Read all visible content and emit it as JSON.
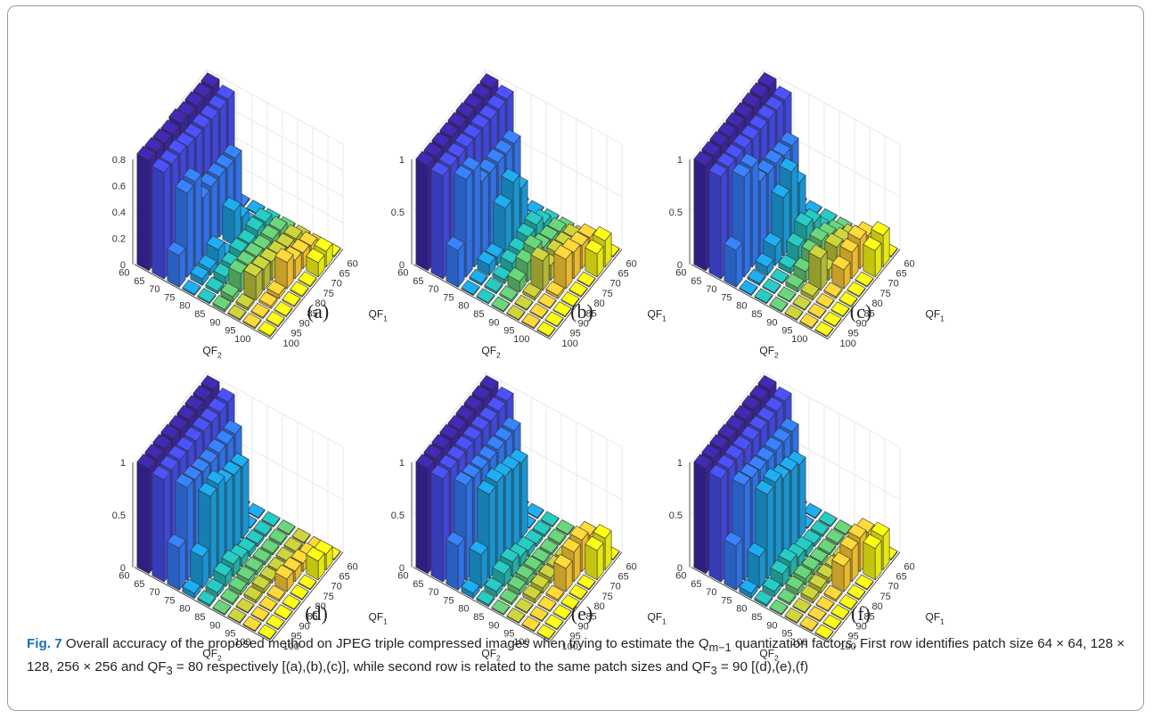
{
  "figure": {
    "caption_label": "Fig. 7",
    "caption_text": " Overall accuracy of the proposed method on JPEG triple compressed images when trying to estimate the Q",
    "caption_sub": "m−1",
    "caption_text2": " quantization factors. First row identifies patch size 64 × 64, 128 × 128, 256 × 256 and QF",
    "caption_sub2": "3",
    "caption_text3": " = 80 respectively [(a),(b),(c)], while second row is related to the same patch sizes and QF",
    "caption_sub3": "3",
    "caption_text4": " = 90 [(d),(e),(f)"
  },
  "chart_data": [
    {
      "type": "bar3d",
      "panel_label": "(a)",
      "zticks": [
        "0",
        "0.2",
        "0.4",
        "0.6",
        "0.8"
      ],
      "zlim": [
        0,
        0.8
      ],
      "xlabel": "QF",
      "xlabel_sub": "1",
      "ylabel": "QF",
      "ylabel_sub": "2",
      "qf1": [
        60,
        65,
        70,
        75,
        80,
        85,
        90,
        95,
        100
      ],
      "qf2": [
        60,
        65,
        70,
        75,
        80,
        85,
        90,
        95,
        100
      ],
      "values": [
        [
          0.79,
          0.79,
          0.8,
          0.8,
          0.82,
          0.81,
          0.82,
          0.83,
          0.84
        ],
        [
          0.76,
          0.76,
          0.76,
          0.77,
          0.77,
          0.78,
          0.8,
          0.8,
          0.81
        ],
        [
          0.01,
          0.45,
          0.45,
          0.46,
          0.46,
          0.45,
          0.65,
          0.64,
          0.24
        ],
        [
          0.01,
          0.01,
          0.14,
          0.26,
          0.01,
          0.12,
          0.05,
          0.05,
          0.01
        ],
        [
          0.01,
          0.09,
          0.1,
          0.08,
          0.09,
          0.06,
          0.05,
          0.02,
          0.01
        ],
        [
          0.01,
          0.09,
          0.1,
          0.1,
          0.12,
          0.13,
          0.14,
          0.04,
          0.02
        ],
        [
          0.01,
          0.09,
          0.1,
          0.12,
          0.14,
          0.16,
          0.18,
          0.02,
          0.01
        ],
        [
          0.01,
          0.1,
          0.12,
          0.14,
          0.2,
          0.03,
          0.02,
          0.01,
          0.01
        ],
        [
          0.01,
          0.12,
          0.11,
          0.01,
          0.01,
          0.01,
          0.01,
          0.01,
          0.01
        ]
      ]
    },
    {
      "type": "bar3d",
      "panel_label": "(b)",
      "zticks": [
        "0",
        "0.5",
        "1"
      ],
      "zlim": [
        0,
        1
      ],
      "xlabel": "QF",
      "xlabel_sub": "1",
      "ylabel": "QF",
      "ylabel_sub": "2",
      "qf1": [
        60,
        65,
        70,
        75,
        80,
        85,
        90,
        95,
        100
      ],
      "qf2": [
        60,
        65,
        70,
        75,
        80,
        85,
        90,
        95,
        100
      ],
      "values": [
        [
          0.98,
          0.98,
          0.98,
          0.99,
          0.99,
          0.99,
          0.99,
          0.99,
          1.0
        ],
        [
          0.95,
          0.95,
          0.95,
          0.96,
          0.96,
          0.97,
          0.97,
          0.98,
          0.98
        ],
        [
          0.01,
          0.7,
          0.7,
          0.71,
          0.71,
          0.72,
          0.92,
          0.93,
          0.35
        ],
        [
          0.01,
          0.01,
          0.45,
          0.6,
          0.45,
          0.08,
          0.1,
          0.02,
          0.01
        ],
        [
          0.01,
          0.1,
          0.18,
          0.16,
          0.12,
          0.1,
          0.04,
          0.02,
          0.01
        ],
        [
          0.01,
          0.1,
          0.12,
          0.14,
          0.22,
          0.18,
          0.1,
          0.02,
          0.01
        ],
        [
          0.01,
          0.12,
          0.14,
          0.16,
          0.14,
          0.28,
          0.03,
          0.01,
          0.01
        ],
        [
          0.01,
          0.2,
          0.22,
          0.25,
          0.28,
          0.03,
          0.01,
          0.01,
          0.01
        ],
        [
          0.01,
          0.25,
          0.22,
          0.01,
          0.01,
          0.01,
          0.01,
          0.01,
          0.01
        ]
      ]
    },
    {
      "type": "bar3d",
      "panel_label": "(c)",
      "zticks": [
        "0",
        "0.5",
        "1"
      ],
      "zlim": [
        0,
        1
      ],
      "xlabel": "QF",
      "xlabel_sub": "1",
      "ylabel": "QF",
      "ylabel_sub": "2",
      "qf1": [
        60,
        65,
        70,
        75,
        80,
        85,
        90,
        95,
        100
      ],
      "qf2": [
        60,
        65,
        70,
        75,
        80,
        85,
        90,
        95,
        100
      ],
      "values": [
        [
          0.99,
          0.99,
          0.99,
          0.99,
          0.99,
          0.99,
          1.0,
          1.0,
          1.0
        ],
        [
          0.94,
          0.94,
          0.95,
          0.95,
          0.95,
          0.96,
          0.96,
          0.97,
          0.97
        ],
        [
          0.01,
          0.68,
          0.68,
          0.7,
          0.7,
          0.72,
          0.95,
          0.95,
          0.35
        ],
        [
          0.01,
          0.01,
          0.5,
          0.7,
          0.55,
          0.18,
          0.08,
          0.02,
          0.01
        ],
        [
          0.01,
          0.05,
          0.2,
          0.26,
          0.16,
          0.05,
          0.01,
          0.01,
          0.01
        ],
        [
          0.01,
          0.08,
          0.15,
          0.2,
          0.18,
          0.1,
          0.04,
          0.01,
          0.01
        ],
        [
          0.01,
          0.12,
          0.18,
          0.22,
          0.1,
          0.3,
          0.04,
          0.01,
          0.01
        ],
        [
          0.01,
          0.22,
          0.28,
          0.25,
          0.18,
          0.02,
          0.01,
          0.01,
          0.01
        ],
        [
          0.01,
          0.3,
          0.25,
          0.01,
          0.01,
          0.01,
          0.01,
          0.01,
          0.01
        ]
      ]
    },
    {
      "type": "bar3d",
      "panel_label": "(d)",
      "zticks": [
        "0",
        "0.5",
        "1"
      ],
      "zlim": [
        0,
        1
      ],
      "xlabel": "QF",
      "xlabel_sub": "1",
      "ylabel": "QF",
      "ylabel_sub": "2",
      "qf1": [
        60,
        65,
        70,
        75,
        80,
        85,
        90,
        95,
        100
      ],
      "qf2": [
        60,
        65,
        70,
        75,
        80,
        85,
        90,
        95,
        100
      ],
      "values": [
        [
          0.99,
          0.99,
          0.99,
          0.99,
          0.99,
          1.0,
          1.0,
          1.0,
          1.0
        ],
        [
          0.95,
          0.95,
          0.95,
          0.96,
          0.96,
          0.96,
          0.97,
          0.97,
          0.97
        ],
        [
          0.01,
          0.82,
          0.82,
          0.83,
          0.83,
          0.84,
          0.86,
          0.88,
          0.4
        ],
        [
          0.01,
          0.01,
          0.68,
          0.7,
          0.72,
          0.8,
          0.78,
          0.3,
          0.05
        ],
        [
          0.01,
          0.02,
          0.03,
          0.05,
          0.08,
          0.12,
          0.1,
          0.04,
          0.02
        ],
        [
          0.01,
          0.02,
          0.02,
          0.03,
          0.04,
          0.05,
          0.04,
          0.02,
          0.01
        ],
        [
          0.01,
          0.02,
          0.02,
          0.02,
          0.03,
          0.04,
          0.03,
          0.01,
          0.01
        ],
        [
          0.01,
          0.05,
          0.08,
          0.1,
          0.12,
          0.02,
          0.01,
          0.01,
          0.01
        ],
        [
          0.01,
          0.15,
          0.18,
          0.01,
          0.01,
          0.01,
          0.01,
          0.01,
          0.01
        ]
      ]
    },
    {
      "type": "bar3d",
      "panel_label": "(e)",
      "zticks": [
        "0",
        "0.5",
        "1"
      ],
      "zlim": [
        0,
        1
      ],
      "xlabel": "QF",
      "xlabel_sub": "1",
      "ylabel": "QF",
      "ylabel_sub": "2",
      "qf1": [
        60,
        65,
        70,
        75,
        80,
        85,
        90,
        95,
        100
      ],
      "qf2": [
        60,
        65,
        70,
        75,
        80,
        85,
        90,
        95,
        100
      ],
      "values": [
        [
          0.99,
          0.99,
          0.99,
          0.99,
          0.99,
          1.0,
          1.0,
          1.0,
          1.0
        ],
        [
          0.96,
          0.96,
          0.96,
          0.97,
          0.97,
          0.97,
          0.97,
          0.98,
          0.98
        ],
        [
          0.01,
          0.85,
          0.85,
          0.86,
          0.86,
          0.87,
          0.88,
          0.9,
          0.42
        ],
        [
          0.01,
          0.01,
          0.72,
          0.75,
          0.78,
          0.82,
          0.8,
          0.32,
          0.05
        ],
        [
          0.01,
          0.02,
          0.03,
          0.06,
          0.09,
          0.14,
          0.12,
          0.05,
          0.02
        ],
        [
          0.01,
          0.02,
          0.02,
          0.03,
          0.05,
          0.06,
          0.05,
          0.02,
          0.01
        ],
        [
          0.01,
          0.02,
          0.03,
          0.04,
          0.05,
          0.05,
          0.04,
          0.01,
          0.01
        ],
        [
          0.01,
          0.25,
          0.3,
          0.28,
          0.22,
          0.02,
          0.01,
          0.01,
          0.01
        ],
        [
          0.01,
          0.3,
          0.28,
          0.01,
          0.01,
          0.01,
          0.01,
          0.01,
          0.01
        ]
      ]
    },
    {
      "type": "bar3d",
      "panel_label": "(f)",
      "zticks": [
        "0",
        "0.5",
        "1"
      ],
      "zlim": [
        0,
        1
      ],
      "xlabel": "QF",
      "xlabel_sub": "1",
      "ylabel": "QF",
      "ylabel_sub": "2",
      "qf1": [
        60,
        65,
        70,
        75,
        80,
        85,
        90,
        95,
        100
      ],
      "qf2": [
        60,
        65,
        70,
        75,
        80,
        85,
        90,
        95,
        100
      ],
      "values": [
        [
          0.99,
          0.99,
          0.99,
          0.99,
          0.99,
          1.0,
          1.0,
          1.0,
          1.0
        ],
        [
          0.96,
          0.96,
          0.96,
          0.97,
          0.97,
          0.97,
          0.98,
          0.98,
          0.98
        ],
        [
          0.01,
          0.84,
          0.84,
          0.85,
          0.85,
          0.86,
          0.88,
          0.9,
          0.42
        ],
        [
          0.01,
          0.01,
          0.7,
          0.74,
          0.76,
          0.82,
          0.8,
          0.3,
          0.05
        ],
        [
          0.01,
          0.02,
          0.03,
          0.06,
          0.09,
          0.14,
          0.12,
          0.05,
          0.02
        ],
        [
          0.01,
          0.02,
          0.02,
          0.03,
          0.05,
          0.06,
          0.05,
          0.02,
          0.01
        ],
        [
          0.01,
          0.02,
          0.03,
          0.04,
          0.05,
          0.05,
          0.04,
          0.01,
          0.01
        ],
        [
          0.01,
          0.28,
          0.32,
          0.3,
          0.24,
          0.02,
          0.01,
          0.01,
          0.01
        ],
        [
          0.01,
          0.32,
          0.3,
          0.01,
          0.01,
          0.01,
          0.01,
          0.01,
          0.01
        ]
      ]
    }
  ]
}
